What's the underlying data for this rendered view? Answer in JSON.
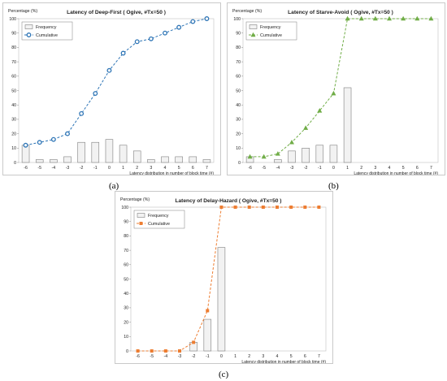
{
  "chart_data": [
    {
      "type": "bar+line",
      "title": "Latency of Deep-First ( Ogive, #Tx=50 )",
      "ylabel": "Percentage (%)",
      "xlabel": "Latency distribution in number of block time (#)",
      "ylim": [
        0,
        100
      ],
      "yticks": [
        0,
        10,
        20,
        30,
        40,
        50,
        60,
        70,
        80,
        90,
        100
      ],
      "categories": [
        "-6",
        "-5",
        "-4",
        "-3",
        "-2",
        "-1",
        "0",
        "1",
        "2",
        "3",
        "4",
        "5",
        "6",
        "7"
      ],
      "series": [
        {
          "name": "Frequency",
          "kind": "bar",
          "color": "#f2f2f2",
          "values": [
            12,
            2,
            2,
            4,
            14,
            14,
            16,
            12,
            8,
            2,
            4,
            4,
            4,
            2
          ]
        },
        {
          "name": "Cumulative",
          "kind": "line",
          "marker": "circle",
          "color": "#2e75b6",
          "values": [
            12,
            14,
            16,
            20,
            34,
            48,
            64,
            76,
            84,
            86,
            90,
            94,
            98,
            100
          ]
        }
      ],
      "legend": "top-left",
      "caption": "(a)"
    },
    {
      "type": "bar+line",
      "title": "Latency of Starve-Avoid ( Ogive, #Tx=50 )",
      "ylabel": "Percentage (%)",
      "xlabel": "Latency distribution in number of block time (#)",
      "ylim": [
        0,
        100
      ],
      "yticks": [
        0,
        10,
        20,
        30,
        40,
        50,
        60,
        70,
        80,
        90,
        100
      ],
      "categories": [
        "-6",
        "-5",
        "-4",
        "-3",
        "-2",
        "-1",
        "0",
        "1",
        "2",
        "3",
        "4",
        "5",
        "6",
        "7"
      ],
      "series": [
        {
          "name": "Frequency",
          "kind": "bar",
          "color": "#f2f2f2",
          "values": [
            4,
            0,
            2,
            8,
            10,
            12,
            12,
            52,
            0,
            0,
            0,
            0,
            0,
            0
          ]
        },
        {
          "name": "Cumulative",
          "kind": "line",
          "marker": "triangle",
          "color": "#70ad47",
          "values": [
            4,
            4,
            6,
            14,
            24,
            36,
            48,
            100,
            100,
            100,
            100,
            100,
            100,
            100
          ]
        }
      ],
      "legend": "top-left",
      "caption": "(b)"
    },
    {
      "type": "bar+line",
      "title": "Latency of Delay-Hazard ( Ogive, #Tx=50 )",
      "ylabel": "Percentage (%)",
      "xlabel": "Latency distribution in number of block time (#)",
      "ylim": [
        0,
        100
      ],
      "yticks": [
        0,
        10,
        20,
        30,
        40,
        50,
        60,
        70,
        80,
        90,
        100
      ],
      "categories": [
        "-6",
        "-5",
        "-4",
        "-3",
        "-2",
        "-1",
        "0",
        "1",
        "2",
        "3",
        "4",
        "5",
        "6",
        "7"
      ],
      "series": [
        {
          "name": "Frequency",
          "kind": "bar",
          "color": "#f2f2f2",
          "values": [
            0,
            0,
            0,
            0,
            6,
            22,
            72,
            0,
            0,
            0,
            0,
            0,
            0,
            0
          ]
        },
        {
          "name": "Cumulative",
          "kind": "line",
          "marker": "square",
          "color": "#ed7d31",
          "values": [
            0,
            0,
            0,
            0,
            6,
            28,
            100,
            100,
            100,
            100,
            100,
            100,
            100,
            100
          ]
        }
      ],
      "legend": "top-left",
      "caption": "(c)"
    }
  ]
}
